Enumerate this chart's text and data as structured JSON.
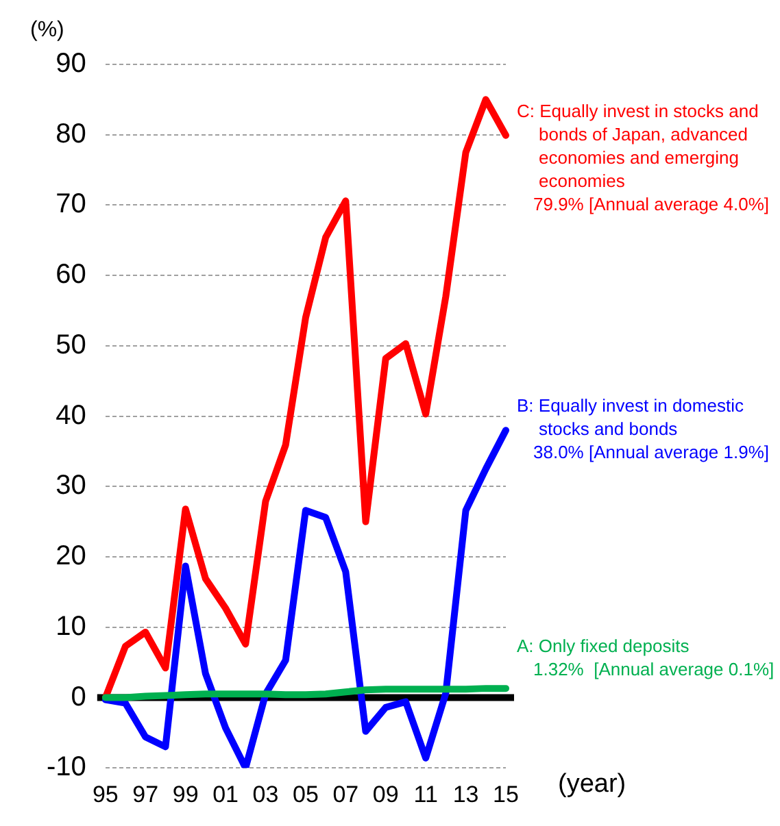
{
  "chart_data": {
    "type": "line",
    "ylabel": "(%)",
    "xlabel": "(year)",
    "categories": [
      "95",
      null,
      "97",
      null,
      "99",
      null,
      "01",
      null,
      "03",
      null,
      "05",
      null,
      "07",
      null,
      "09",
      null,
      "11",
      null,
      "13",
      null,
      "15"
    ],
    "series": [
      {
        "name": "C: Equally invest in stocks and bonds of Japan, advanced economies and emerging economies",
        "color": "#ff0000",
        "values": [
          0,
          7.3,
          9.3,
          4.2,
          26.8,
          16.9,
          12.7,
          7.6,
          27.9,
          35.9,
          54,
          65.4,
          70.6,
          25,
          48.2,
          50.3,
          40.3,
          57,
          77.5,
          85,
          79.9
        ]
      },
      {
        "name": "B: Equally invest in domestic stocks and bonds",
        "color": "#0000ff",
        "values": [
          -0.3,
          -0.8,
          -5.6,
          -7,
          18.7,
          3.4,
          -4.3,
          -10,
          0.5,
          5.3,
          26.6,
          25.6,
          17.9,
          -4.8,
          -1.4,
          -0.6,
          -8.6,
          0.6,
          26.6,
          32.5,
          38
        ]
      },
      {
        "name": "A: Only fixed deposits",
        "color": "#00b050",
        "values": [
          0,
          0,
          0.2,
          0.3,
          0.4,
          0.5,
          0.5,
          0.5,
          0.5,
          0.4,
          0.4,
          0.5,
          0.8,
          1.1,
          1.2,
          1.2,
          1.2,
          1.2,
          1.2,
          1.3,
          1.3
        ]
      }
    ],
    "annotations": [
      "79.9% [Annual average 4.0%]",
      "38.0% [Annual average 1.9%]",
      "1.32%  [Annual average 0.1%]"
    ],
    "ylim": [
      -10,
      90
    ],
    "yticks": [
      -10,
      0,
      10,
      20,
      30,
      40,
      50,
      60,
      70,
      80,
      90
    ],
    "grid": "y",
    "legend": false,
    "marker": "none",
    "line_style": "solid",
    "ref_lines": [
      {
        "axis": "y",
        "value": 0,
        "color": "#000000"
      }
    ]
  }
}
